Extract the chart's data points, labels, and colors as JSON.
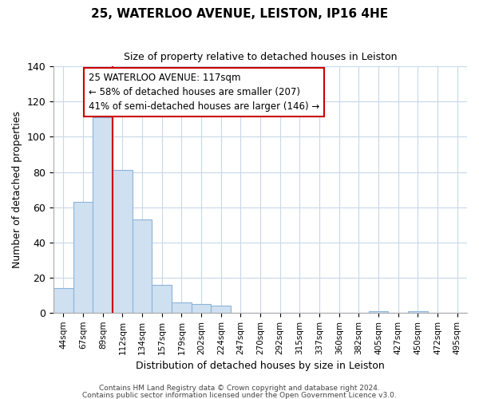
{
  "title": "25, WATERLOO AVENUE, LEISTON, IP16 4HE",
  "subtitle": "Size of property relative to detached houses in Leiston",
  "xlabel": "Distribution of detached houses by size in Leiston",
  "ylabel": "Number of detached properties",
  "bar_labels": [
    "44sqm",
    "67sqm",
    "89sqm",
    "112sqm",
    "134sqm",
    "157sqm",
    "179sqm",
    "202sqm",
    "224sqm",
    "247sqm",
    "270sqm",
    "292sqm",
    "315sqm",
    "337sqm",
    "360sqm",
    "382sqm",
    "405sqm",
    "427sqm",
    "450sqm",
    "472sqm",
    "495sqm"
  ],
  "bar_values": [
    14,
    63,
    111,
    81,
    53,
    16,
    6,
    5,
    4,
    0,
    0,
    0,
    0,
    0,
    0,
    0,
    1,
    0,
    1,
    0,
    0
  ],
  "bar_color": "#cfe0f1",
  "bar_edge_color": "#8ab4d9",
  "vline_color": "#cc0000",
  "ylim": [
    0,
    140
  ],
  "yticks": [
    0,
    20,
    40,
    60,
    80,
    100,
    120,
    140
  ],
  "annotation_box_text": "25 WATERLOO AVENUE: 117sqm\n← 58% of detached houses are smaller (207)\n41% of semi-detached houses are larger (146) →",
  "footer_line1": "Contains HM Land Registry data © Crown copyright and database right 2024.",
  "footer_line2": "Contains public sector information licensed under the Open Government Licence v3.0.",
  "background_color": "#ffffff",
  "grid_color": "#c8d8ea"
}
